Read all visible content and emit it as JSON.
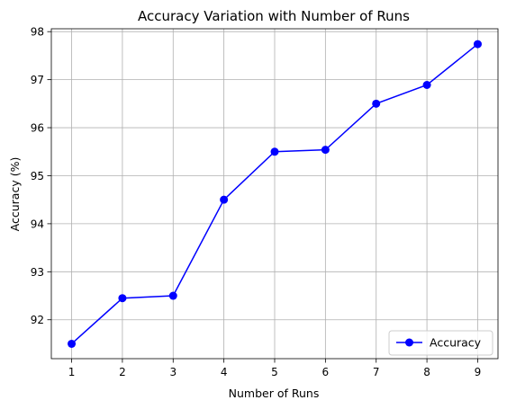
{
  "chart_data": {
    "type": "line",
    "title": "Accuracy Variation with Number of Runs",
    "xlabel": "Number of Runs",
    "ylabel": "Accuracy (%)",
    "x": [
      1,
      2,
      3,
      4,
      5,
      6,
      7,
      8,
      9
    ],
    "xticks": [
      "1",
      "2",
      "3",
      "4",
      "5",
      "6",
      "7",
      "8",
      "9"
    ],
    "yticks": [
      "92",
      "93",
      "94",
      "95",
      "96",
      "97",
      "98"
    ],
    "ytick_values": [
      92,
      93,
      94,
      95,
      96,
      97,
      98
    ],
    "xlim": [
      0.6,
      9.4
    ],
    "ylim": [
      91.19,
      98.06
    ],
    "grid": true,
    "series": [
      {
        "name": "Accuracy",
        "values": [
          91.5,
          92.45,
          92.5,
          94.5,
          95.5,
          95.54,
          96.5,
          96.89,
          97.74
        ],
        "color": "#0000ff",
        "marker": "circle"
      }
    ],
    "legend": {
      "position": "lower-right",
      "entries": [
        "Accuracy"
      ]
    }
  }
}
